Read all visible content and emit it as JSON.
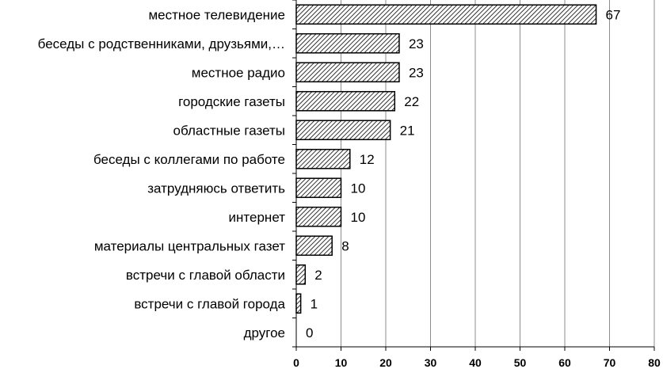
{
  "chart_data": {
    "type": "bar",
    "orientation": "horizontal",
    "categories": [
      "местное телевидение",
      "беседы с родственниками, друзьями,…",
      "местное радио",
      "городские газеты",
      "областные газеты",
      "беседы с коллегами по работе",
      "затрудняюсь ответить",
      "интернет",
      "материалы центральных газет",
      "встречи с главой области",
      "встречи с главой города",
      "другое"
    ],
    "values": [
      67,
      23,
      23,
      22,
      21,
      12,
      10,
      10,
      8,
      2,
      1,
      0
    ],
    "xlim": [
      0,
      80
    ],
    "ticks": [
      0,
      10,
      20,
      30,
      40,
      50,
      60,
      70,
      80
    ],
    "tick_labels": [
      "0",
      "10",
      "20",
      "30",
      "40",
      "50",
      "60",
      "70",
      "80"
    ],
    "grid": "vertical",
    "bar_fill": "diagonal-hatch",
    "bar_color": "#000000",
    "grid_color": "#8c8c8c",
    "title": "",
    "xlabel": "",
    "ylabel": ""
  }
}
